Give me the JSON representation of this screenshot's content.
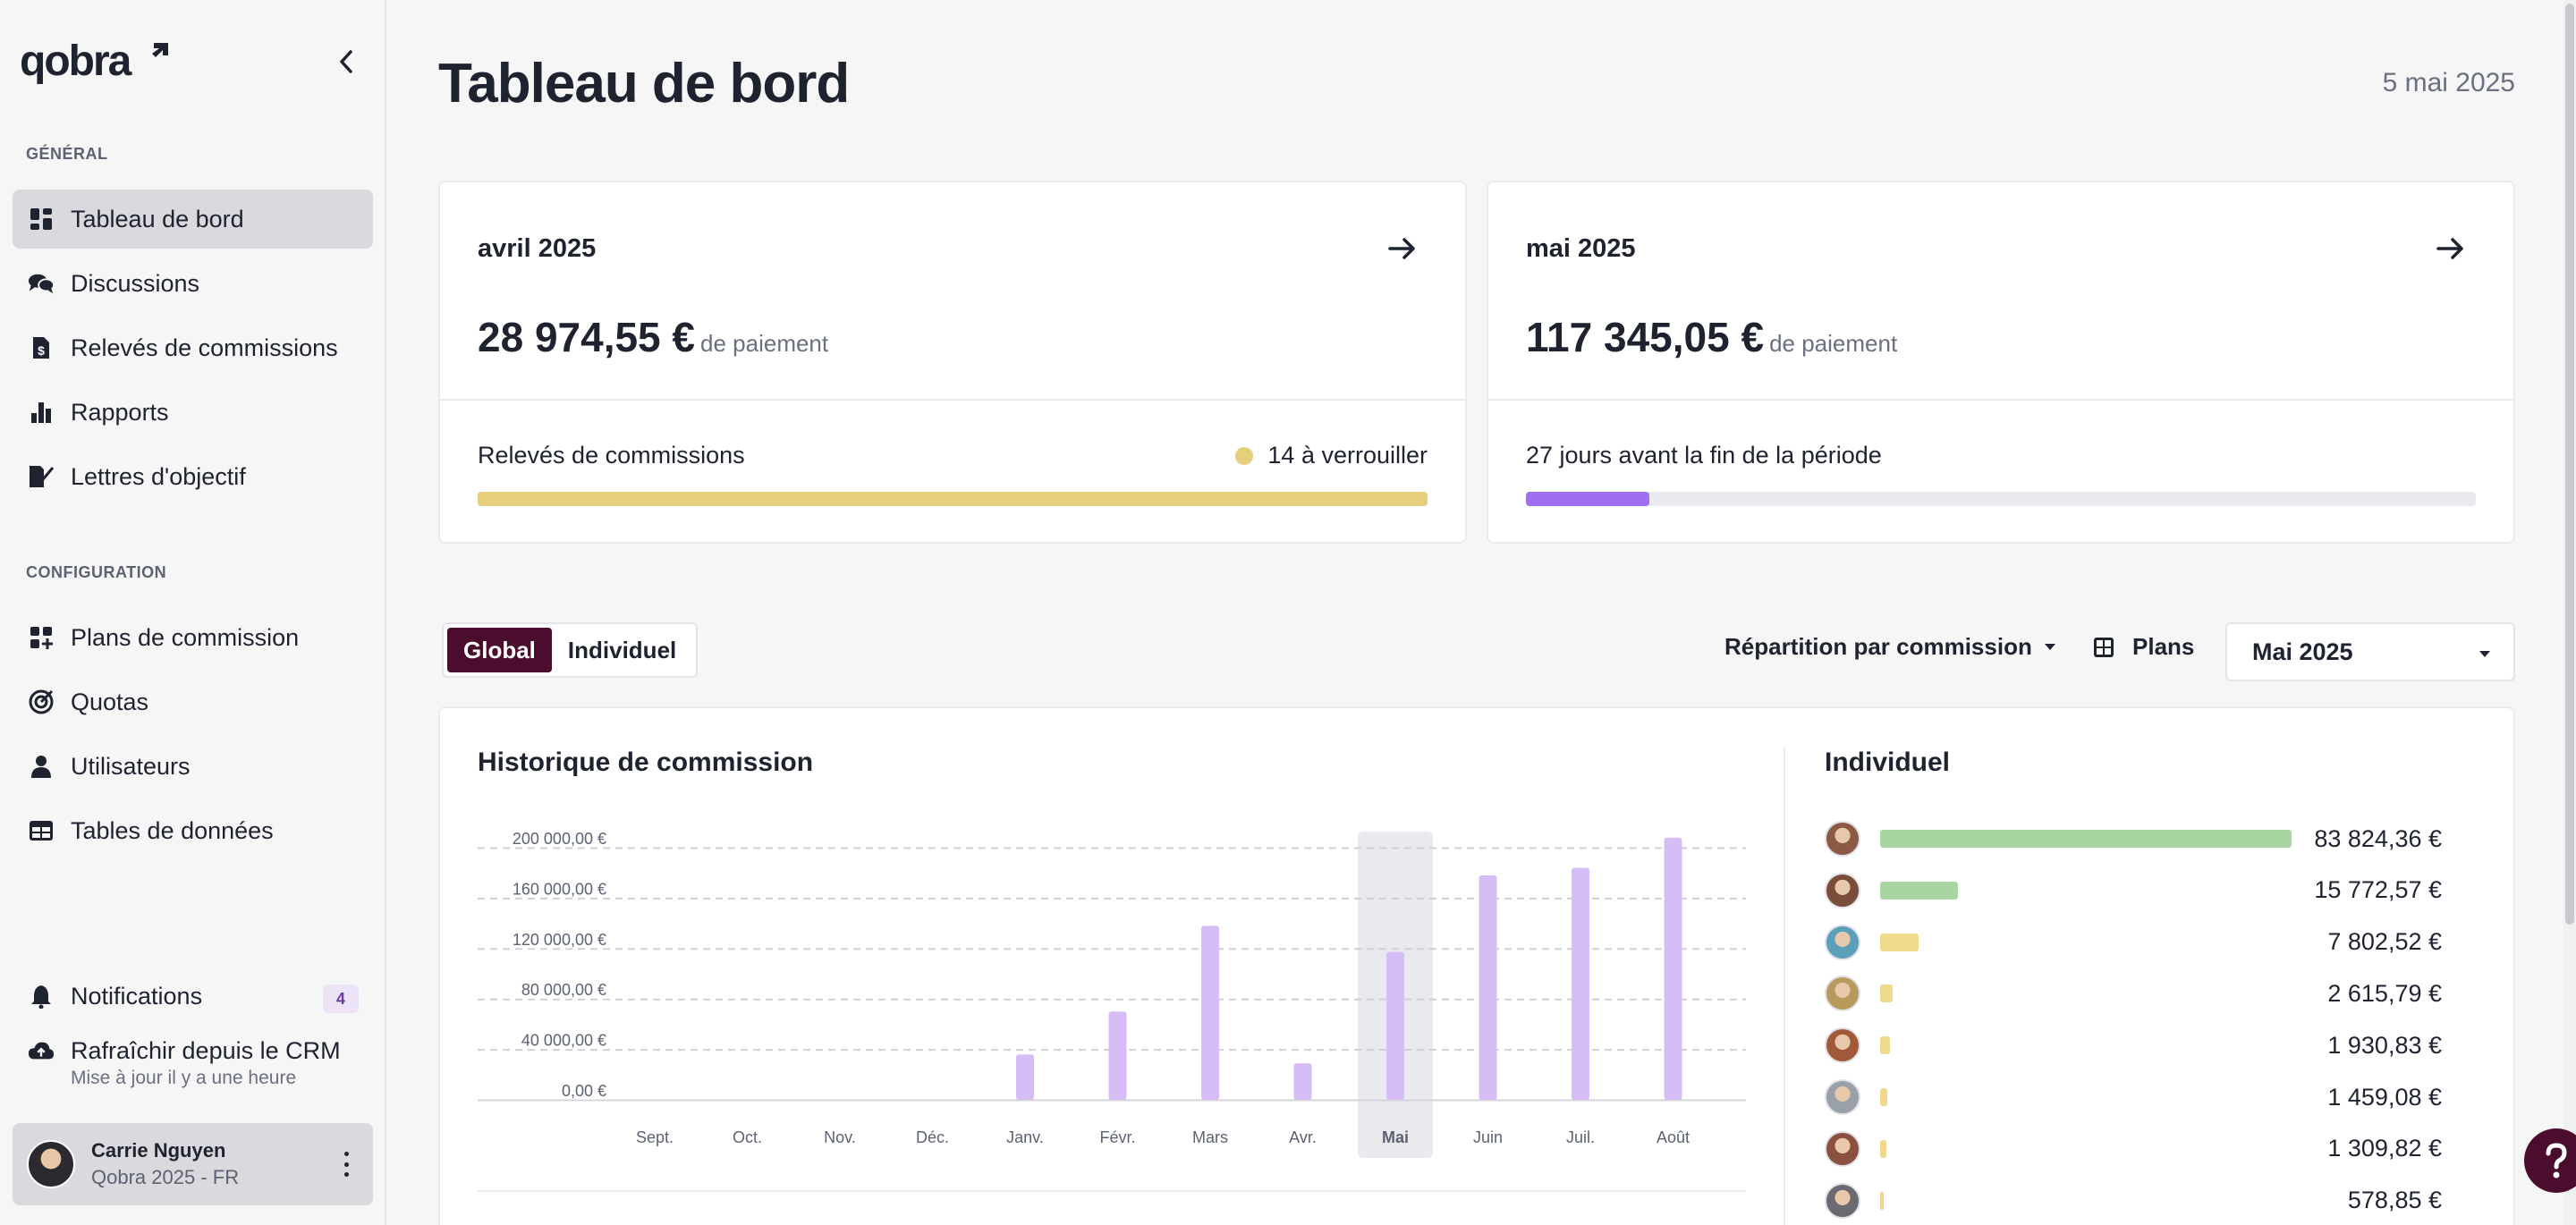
{
  "app": {
    "logo_text": "qobra"
  },
  "sidebar": {
    "section_general": "GÉNÉRAL",
    "section_config": "CONFIGURATION",
    "general_items": [
      {
        "label": "Tableau de bord",
        "icon": "grid-icon"
      },
      {
        "label": "Discussions",
        "icon": "chat-icon"
      },
      {
        "label": "Relevés de commissions",
        "icon": "file-dollar-icon"
      },
      {
        "label": "Rapports",
        "icon": "bar-chart-icon"
      },
      {
        "label": "Lettres d'objectif",
        "icon": "signature-icon"
      }
    ],
    "config_items": [
      {
        "label": "Plans de commission",
        "icon": "grid-plus-icon"
      },
      {
        "label": "Quotas",
        "icon": "target-icon"
      },
      {
        "label": "Utilisateurs",
        "icon": "user-icon"
      },
      {
        "label": "Tables de données",
        "icon": "table-icon"
      }
    ],
    "notifications": {
      "label": "Notifications",
      "count": "4"
    },
    "crm": {
      "label": "Rafraîchir depuis le CRM",
      "sub": "Mise à jour il y a une heure"
    },
    "user": {
      "name": "Carrie Nguyen",
      "org": "Qobra 2025 - FR"
    }
  },
  "header": {
    "title": "Tableau de bord",
    "date": "5 mai 2025"
  },
  "cards": [
    {
      "period": "avril 2025",
      "amount": "28 974,55 €",
      "amount_suffix": "de paiement",
      "footer_label": "Relevés de commissions",
      "footer_right": "14 à verrouiller",
      "progress": 1.0,
      "progress_color": "#e6cf7c"
    },
    {
      "period": "mai 2025",
      "amount": "117 345,05 €",
      "amount_suffix": "de paiement",
      "footer_label": "27 jours avant la fin de la période",
      "footer_right": "",
      "progress": 0.13,
      "progress_color": "#a06ff0"
    }
  ],
  "toolbar": {
    "toggle": [
      "Global",
      "Individuel"
    ],
    "repartition": "Répartition par commission",
    "plans": "Plans",
    "month": "Mai 2025"
  },
  "history": {
    "title": "Historique de commission",
    "highlight_color": "#e9e9ee",
    "bar_color": "#d7bdf5"
  },
  "chart_data": {
    "type": "bar",
    "title": "Historique de commission",
    "categories": [
      "Sept.",
      "Oct.",
      "Nov.",
      "Déc.",
      "Janv.",
      "Févr.",
      "Mars",
      "Avr.",
      "Mai",
      "Juin",
      "Juil.",
      "Août"
    ],
    "values": [
      0,
      0,
      0,
      0,
      36000,
      70000,
      138000,
      28974.55,
      117345.05,
      178000,
      184000,
      208000
    ],
    "yticks": [
      "0,00 €",
      "40 000,00 €",
      "80 000,00 €",
      "120 000,00 €",
      "160 000,00 €",
      "200 000,00 €"
    ],
    "ylim": [
      0,
      200000
    ],
    "highlighted_category": "Mai",
    "grid": true
  },
  "individual": {
    "title": "Individuel",
    "rows": [
      {
        "value": 83824.36,
        "label": "83 824,36 €",
        "color": "#a8d5a2",
        "avatar": "#8a5a44"
      },
      {
        "value": 15772.57,
        "label": "15 772,57 €",
        "color": "#a8d5a2",
        "avatar": "#7a4c3a"
      },
      {
        "value": 7802.52,
        "label": "7 802,52 €",
        "color": "#eed98c",
        "avatar": "#5aa0b8"
      },
      {
        "value": 2615.79,
        "label": "2 615,79 €",
        "color": "#eed98c",
        "avatar": "#b89a5c"
      },
      {
        "value": 1930.83,
        "label": "1 930,83 €",
        "color": "#eed98c",
        "avatar": "#a05a3a"
      },
      {
        "value": 1459.08,
        "label": "1 459,08 €",
        "color": "#eed98c",
        "avatar": "#9aa0a8"
      },
      {
        "value": 1309.82,
        "label": "1 309,82 €",
        "color": "#eed98c",
        "avatar": "#8a5040"
      },
      {
        "value": 578.85,
        "label": "578,85 €",
        "color": "#eed98c",
        "avatar": "#6a6a70"
      }
    ]
  }
}
